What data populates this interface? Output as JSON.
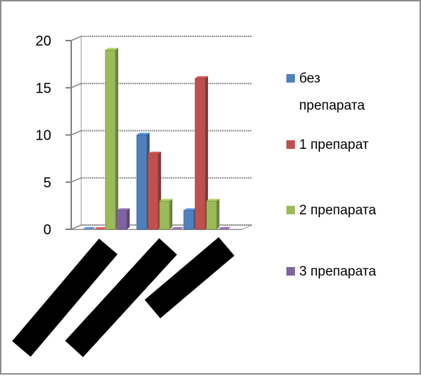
{
  "chart_data": {
    "type": "bar",
    "categories": [
      "",
      "",
      ""
    ],
    "series": [
      {
        "name": "без препарата",
        "values": [
          0,
          10,
          2
        ],
        "color": "#4F81BD"
      },
      {
        "name": "1 препарат",
        "values": [
          0,
          8,
          16
        ],
        "color": "#C0504D"
      },
      {
        "name": "2 препарата",
        "values": [
          19,
          3,
          3
        ],
        "color": "#9BBB59"
      },
      {
        "name": "3 препарата",
        "values": [
          2,
          0,
          0
        ],
        "color": "#8064A2"
      }
    ],
    "legend_lines": [
      [
        "без",
        "препарата"
      ],
      [
        "1 препарат"
      ],
      [
        "2 препарата"
      ],
      [
        "3 препарата"
      ]
    ],
    "y_ticks": [
      "0",
      "5",
      "10",
      "15",
      "20"
    ],
    "ylim": [
      0,
      20
    ],
    "grid": true,
    "legend_position": "right",
    "category_labels_obscured": true
  }
}
